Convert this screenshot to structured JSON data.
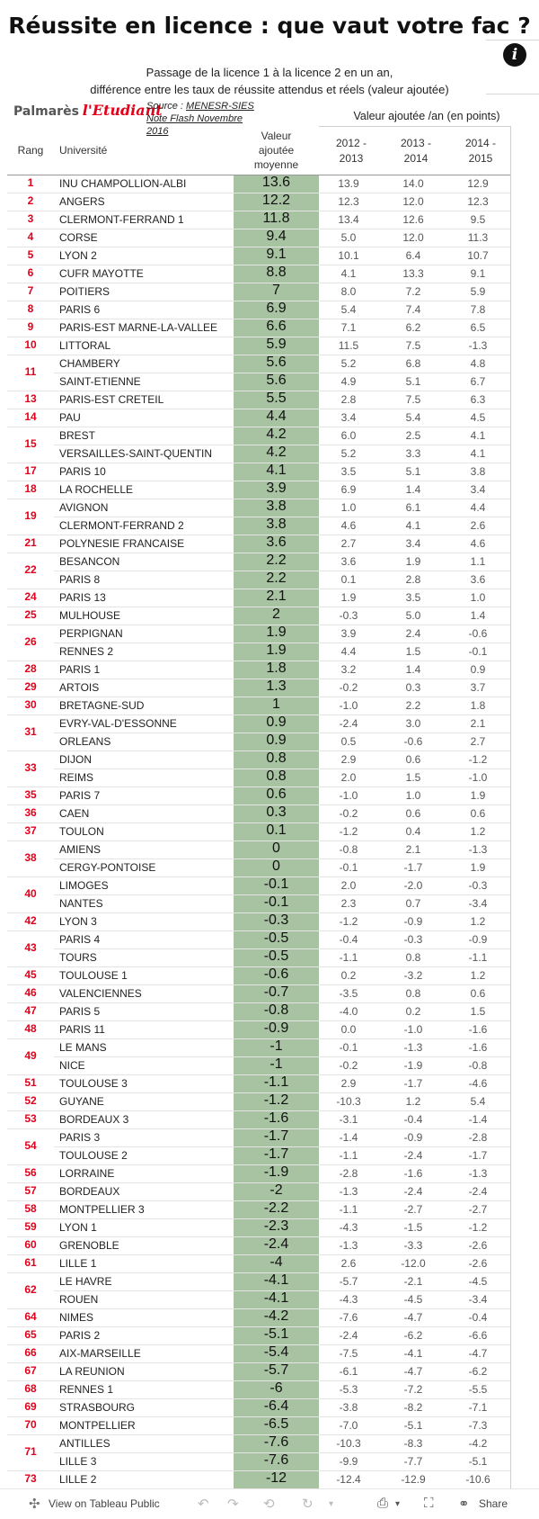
{
  "title": "Réussite en licence : que vaut votre fac ?",
  "info_glyph": "i",
  "subtitle": {
    "line1": "Passage de la licence 1 à la licence 2 en un an,",
    "line2": "différence entre les taux de réussite attendus et réels (valeur ajoutée)"
  },
  "logo": {
    "part1": "Palmarès",
    "part2": "l'Etudiant"
  },
  "source": {
    "label": "Source : ",
    "org": "MENESR-SIES",
    "note1": "Note Flash Novembre",
    "note2": "2016"
  },
  "columns": {
    "rank": "Rang",
    "university": "Université",
    "avg_line1": "Valeur",
    "avg_line2": "ajoutée",
    "avg_line3": "moyenne",
    "va_header": "Valeur ajoutée /an (en points)",
    "y1_line1": "2012 -",
    "y1_line2": "2013",
    "y2_line1": "2013 -",
    "y2_line2": "2014",
    "y3_line1": "2014 -",
    "y3_line2": "2015"
  },
  "groups": [
    {
      "rank": "1",
      "rows": [
        {
          "name": "INU CHAMPOLLION-ALBI",
          "avg": "13.6",
          "v1": "13.9",
          "v2": "14.0",
          "v3": "12.9"
        }
      ]
    },
    {
      "rank": "2",
      "rows": [
        {
          "name": "ANGERS",
          "avg": "12.2",
          "v1": "12.3",
          "v2": "12.0",
          "v3": "12.3"
        }
      ]
    },
    {
      "rank": "3",
      "rows": [
        {
          "name": "CLERMONT-FERRAND 1",
          "avg": "11.8",
          "v1": "13.4",
          "v2": "12.6",
          "v3": "9.5"
        }
      ]
    },
    {
      "rank": "4",
      "rows": [
        {
          "name": "CORSE",
          "avg": "9.4",
          "v1": "5.0",
          "v2": "12.0",
          "v3": "11.3"
        }
      ]
    },
    {
      "rank": "5",
      "rows": [
        {
          "name": "LYON 2",
          "avg": "9.1",
          "v1": "10.1",
          "v2": "6.4",
          "v3": "10.7"
        }
      ]
    },
    {
      "rank": "6",
      "rows": [
        {
          "name": "CUFR MAYOTTE",
          "avg": "8.8",
          "v1": "4.1",
          "v2": "13.3",
          "v3": "9.1"
        }
      ]
    },
    {
      "rank": "7",
      "rows": [
        {
          "name": "POITIERS",
          "avg": "7",
          "v1": "8.0",
          "v2": "7.2",
          "v3": "5.9"
        }
      ]
    },
    {
      "rank": "8",
      "rows": [
        {
          "name": "PARIS 6",
          "avg": "6.9",
          "v1": "5.4",
          "v2": "7.4",
          "v3": "7.8"
        }
      ]
    },
    {
      "rank": "9",
      "rows": [
        {
          "name": "PARIS-EST MARNE-LA-VALLEE",
          "avg": "6.6",
          "v1": "7.1",
          "v2": "6.2",
          "v3": "6.5"
        }
      ]
    },
    {
      "rank": "10",
      "rows": [
        {
          "name": "LITTORAL",
          "avg": "5.9",
          "v1": "11.5",
          "v2": "7.5",
          "v3": "-1.3"
        }
      ]
    },
    {
      "rank": "11",
      "rows": [
        {
          "name": "CHAMBERY",
          "avg": "5.6",
          "v1": "5.2",
          "v2": "6.8",
          "v3": "4.8"
        },
        {
          "name": "SAINT-ETIENNE",
          "avg": "5.6",
          "v1": "4.9",
          "v2": "5.1",
          "v3": "6.7"
        }
      ]
    },
    {
      "rank": "13",
      "rows": [
        {
          "name": "PARIS-EST CRETEIL",
          "avg": "5.5",
          "v1": "2.8",
          "v2": "7.5",
          "v3": "6.3"
        }
      ]
    },
    {
      "rank": "14",
      "rows": [
        {
          "name": "PAU",
          "avg": "4.4",
          "v1": "3.4",
          "v2": "5.4",
          "v3": "4.5"
        }
      ]
    },
    {
      "rank": "15",
      "rows": [
        {
          "name": "BREST",
          "avg": "4.2",
          "v1": "6.0",
          "v2": "2.5",
          "v3": "4.1"
        },
        {
          "name": "VERSAILLES-SAINT-QUENTIN",
          "avg": "4.2",
          "v1": "5.2",
          "v2": "3.3",
          "v3": "4.1"
        }
      ]
    },
    {
      "rank": "17",
      "rows": [
        {
          "name": "PARIS 10",
          "avg": "4.1",
          "v1": "3.5",
          "v2": "5.1",
          "v3": "3.8"
        }
      ]
    },
    {
      "rank": "18",
      "rows": [
        {
          "name": "LA ROCHELLE",
          "avg": "3.9",
          "v1": "6.9",
          "v2": "1.4",
          "v3": "3.4"
        }
      ]
    },
    {
      "rank": "19",
      "rows": [
        {
          "name": "AVIGNON",
          "avg": "3.8",
          "v1": "1.0",
          "v2": "6.1",
          "v3": "4.4"
        },
        {
          "name": "CLERMONT-FERRAND 2",
          "avg": "3.8",
          "v1": "4.6",
          "v2": "4.1",
          "v3": "2.6"
        }
      ]
    },
    {
      "rank": "21",
      "rows": [
        {
          "name": "POLYNESIE FRANCAISE",
          "avg": "3.6",
          "v1": "2.7",
          "v2": "3.4",
          "v3": "4.6"
        }
      ]
    },
    {
      "rank": "22",
      "rows": [
        {
          "name": "BESANCON",
          "avg": "2.2",
          "v1": "3.6",
          "v2": "1.9",
          "v3": "1.1"
        },
        {
          "name": "PARIS 8",
          "avg": "2.2",
          "v1": "0.1",
          "v2": "2.8",
          "v3": "3.6"
        }
      ]
    },
    {
      "rank": "24",
      "rows": [
        {
          "name": "PARIS 13",
          "avg": "2.1",
          "v1": "1.9",
          "v2": "3.5",
          "v3": "1.0"
        }
      ]
    },
    {
      "rank": "25",
      "rows": [
        {
          "name": "MULHOUSE",
          "avg": "2",
          "v1": "-0.3",
          "v2": "5.0",
          "v3": "1.4"
        }
      ]
    },
    {
      "rank": "26",
      "rows": [
        {
          "name": "PERPIGNAN",
          "avg": "1.9",
          "v1": "3.9",
          "v2": "2.4",
          "v3": "-0.6"
        },
        {
          "name": "RENNES 2",
          "avg": "1.9",
          "v1": "4.4",
          "v2": "1.5",
          "v3": "-0.1"
        }
      ]
    },
    {
      "rank": "28",
      "rows": [
        {
          "name": "PARIS 1",
          "avg": "1.8",
          "v1": "3.2",
          "v2": "1.4",
          "v3": "0.9"
        }
      ]
    },
    {
      "rank": "29",
      "rows": [
        {
          "name": "ARTOIS",
          "avg": "1.3",
          "v1": "-0.2",
          "v2": "0.3",
          "v3": "3.7"
        }
      ]
    },
    {
      "rank": "30",
      "rows": [
        {
          "name": "BRETAGNE-SUD",
          "avg": "1",
          "v1": "-1.0",
          "v2": "2.2",
          "v3": "1.8"
        }
      ]
    },
    {
      "rank": "31",
      "rows": [
        {
          "name": "EVRY-VAL-D'ESSONNE",
          "avg": "0.9",
          "v1": "-2.4",
          "v2": "3.0",
          "v3": "2.1"
        },
        {
          "name": "ORLEANS",
          "avg": "0.9",
          "v1": "0.5",
          "v2": "-0.6",
          "v3": "2.7"
        }
      ]
    },
    {
      "rank": "33",
      "rows": [
        {
          "name": "DIJON",
          "avg": "0.8",
          "v1": "2.9",
          "v2": "0.6",
          "v3": "-1.2"
        },
        {
          "name": "REIMS",
          "avg": "0.8",
          "v1": "2.0",
          "v2": "1.5",
          "v3": "-1.0"
        }
      ]
    },
    {
      "rank": "35",
      "rows": [
        {
          "name": "PARIS 7",
          "avg": "0.6",
          "v1": "-1.0",
          "v2": "1.0",
          "v3": "1.9"
        }
      ]
    },
    {
      "rank": "36",
      "rows": [
        {
          "name": "CAEN",
          "avg": "0.3",
          "v1": "-0.2",
          "v2": "0.6",
          "v3": "0.6"
        }
      ]
    },
    {
      "rank": "37",
      "rows": [
        {
          "name": "TOULON",
          "avg": "0.1",
          "v1": "-1.2",
          "v2": "0.4",
          "v3": "1.2"
        }
      ]
    },
    {
      "rank": "38",
      "rows": [
        {
          "name": "AMIENS",
          "avg": "0",
          "v1": "-0.8",
          "v2": "2.1",
          "v3": "-1.3"
        },
        {
          "name": "CERGY-PONTOISE",
          "avg": "0",
          "v1": "-0.1",
          "v2": "-1.7",
          "v3": "1.9"
        }
      ]
    },
    {
      "rank": "40",
      "rows": [
        {
          "name": "LIMOGES",
          "avg": "-0.1",
          "v1": "2.0",
          "v2": "-2.0",
          "v3": "-0.3"
        },
        {
          "name": "NANTES",
          "avg": "-0.1",
          "v1": "2.3",
          "v2": "0.7",
          "v3": "-3.4"
        }
      ]
    },
    {
      "rank": "42",
      "rows": [
        {
          "name": "LYON 3",
          "avg": "-0.3",
          "v1": "-1.2",
          "v2": "-0.9",
          "v3": "1.2"
        }
      ]
    },
    {
      "rank": "43",
      "rows": [
        {
          "name": "PARIS 4",
          "avg": "-0.5",
          "v1": "-0.4",
          "v2": "-0.3",
          "v3": "-0.9"
        },
        {
          "name": "TOURS",
          "avg": "-0.5",
          "v1": "-1.1",
          "v2": "0.8",
          "v3": "-1.1"
        }
      ]
    },
    {
      "rank": "45",
      "rows": [
        {
          "name": "TOULOUSE 1",
          "avg": "-0.6",
          "v1": "0.2",
          "v2": "-3.2",
          "v3": "1.2"
        }
      ]
    },
    {
      "rank": "46",
      "rows": [
        {
          "name": "VALENCIENNES",
          "avg": "-0.7",
          "v1": "-3.5",
          "v2": "0.8",
          "v3": "0.6"
        }
      ]
    },
    {
      "rank": "47",
      "rows": [
        {
          "name": "PARIS 5",
          "avg": "-0.8",
          "v1": "-4.0",
          "v2": "0.2",
          "v3": "1.5"
        }
      ]
    },
    {
      "rank": "48",
      "rows": [
        {
          "name": "PARIS 11",
          "avg": "-0.9",
          "v1": "0.0",
          "v2": "-1.0",
          "v3": "-1.6"
        }
      ]
    },
    {
      "rank": "49",
      "rows": [
        {
          "name": "LE MANS",
          "avg": "-1",
          "v1": "-0.1",
          "v2": "-1.3",
          "v3": "-1.6"
        },
        {
          "name": "NICE",
          "avg": "-1",
          "v1": "-0.2",
          "v2": "-1.9",
          "v3": "-0.8"
        }
      ]
    },
    {
      "rank": "51",
      "rows": [
        {
          "name": "TOULOUSE 3",
          "avg": "-1.1",
          "v1": "2.9",
          "v2": "-1.7",
          "v3": "-4.6"
        }
      ]
    },
    {
      "rank": "52",
      "rows": [
        {
          "name": "GUYANE",
          "avg": "-1.2",
          "v1": "-10.3",
          "v2": "1.2",
          "v3": "5.4"
        }
      ]
    },
    {
      "rank": "53",
      "rows": [
        {
          "name": "BORDEAUX 3",
          "avg": "-1.6",
          "v1": "-3.1",
          "v2": "-0.4",
          "v3": "-1.4"
        }
      ]
    },
    {
      "rank": "54",
      "rows": [
        {
          "name": "PARIS 3",
          "avg": "-1.7",
          "v1": "-1.4",
          "v2": "-0.9",
          "v3": "-2.8"
        },
        {
          "name": "TOULOUSE 2",
          "avg": "-1.7",
          "v1": "-1.1",
          "v2": "-2.4",
          "v3": "-1.7"
        }
      ]
    },
    {
      "rank": "56",
      "rows": [
        {
          "name": "LORRAINE",
          "avg": "-1.9",
          "v1": "-2.8",
          "v2": "-1.6",
          "v3": "-1.3"
        }
      ]
    },
    {
      "rank": "57",
      "rows": [
        {
          "name": "BORDEAUX",
          "avg": "-2",
          "v1": "-1.3",
          "v2": "-2.4",
          "v3": "-2.4"
        }
      ]
    },
    {
      "rank": "58",
      "rows": [
        {
          "name": "MONTPELLIER 3",
          "avg": "-2.2",
          "v1": "-1.1",
          "v2": "-2.7",
          "v3": "-2.7"
        }
      ]
    },
    {
      "rank": "59",
      "rows": [
        {
          "name": "LYON 1",
          "avg": "-2.3",
          "v1": "-4.3",
          "v2": "-1.5",
          "v3": "-1.2"
        }
      ]
    },
    {
      "rank": "60",
      "rows": [
        {
          "name": "GRENOBLE",
          "avg": "-2.4",
          "v1": "-1.3",
          "v2": "-3.3",
          "v3": "-2.6"
        }
      ]
    },
    {
      "rank": "61",
      "rows": [
        {
          "name": "LILLE 1",
          "avg": "-4",
          "v1": "2.6",
          "v2": "-12.0",
          "v3": "-2.6"
        }
      ]
    },
    {
      "rank": "62",
      "rows": [
        {
          "name": "LE HAVRE",
          "avg": "-4.1",
          "v1": "-5.7",
          "v2": "-2.1",
          "v3": "-4.5"
        },
        {
          "name": "ROUEN",
          "avg": "-4.1",
          "v1": "-4.3",
          "v2": "-4.5",
          "v3": "-3.4"
        }
      ]
    },
    {
      "rank": "64",
      "rows": [
        {
          "name": "NIMES",
          "avg": "-4.2",
          "v1": "-7.6",
          "v2": "-4.7",
          "v3": "-0.4"
        }
      ]
    },
    {
      "rank": "65",
      "rows": [
        {
          "name": "PARIS 2",
          "avg": "-5.1",
          "v1": "-2.4",
          "v2": "-6.2",
          "v3": "-6.6"
        }
      ]
    },
    {
      "rank": "66",
      "rows": [
        {
          "name": "AIX-MARSEILLE",
          "avg": "-5.4",
          "v1": "-7.5",
          "v2": "-4.1",
          "v3": "-4.7"
        }
      ]
    },
    {
      "rank": "67",
      "rows": [
        {
          "name": "LA REUNION",
          "avg": "-5.7",
          "v1": "-6.1",
          "v2": "-4.7",
          "v3": "-6.2"
        }
      ]
    },
    {
      "rank": "68",
      "rows": [
        {
          "name": "RENNES 1",
          "avg": "-6",
          "v1": "-5.3",
          "v2": "-7.2",
          "v3": "-5.5"
        }
      ]
    },
    {
      "rank": "69",
      "rows": [
        {
          "name": "STRASBOURG",
          "avg": "-6.4",
          "v1": "-3.8",
          "v2": "-8.2",
          "v3": "-7.1"
        }
      ]
    },
    {
      "rank": "70",
      "rows": [
        {
          "name": "MONTPELLIER",
          "avg": "-6.5",
          "v1": "-7.0",
          "v2": "-5.1",
          "v3": "-7.3"
        }
      ]
    },
    {
      "rank": "71",
      "rows": [
        {
          "name": "ANTILLES",
          "avg": "-7.6",
          "v1": "-10.3",
          "v2": "-8.3",
          "v3": "-4.2"
        },
        {
          "name": "LILLE 3",
          "avg": "-7.6",
          "v1": "-9.9",
          "v2": "-7.7",
          "v3": "-5.1"
        }
      ]
    },
    {
      "rank": "73",
      "rows": [
        {
          "name": "LILLE 2",
          "avg": "-12",
          "v1": "-12.4",
          "v2": "-12.9",
          "v3": "-10.6"
        }
      ]
    }
  ],
  "footer": {
    "view_label": "View on Tableau Public",
    "share_label": "Share"
  }
}
